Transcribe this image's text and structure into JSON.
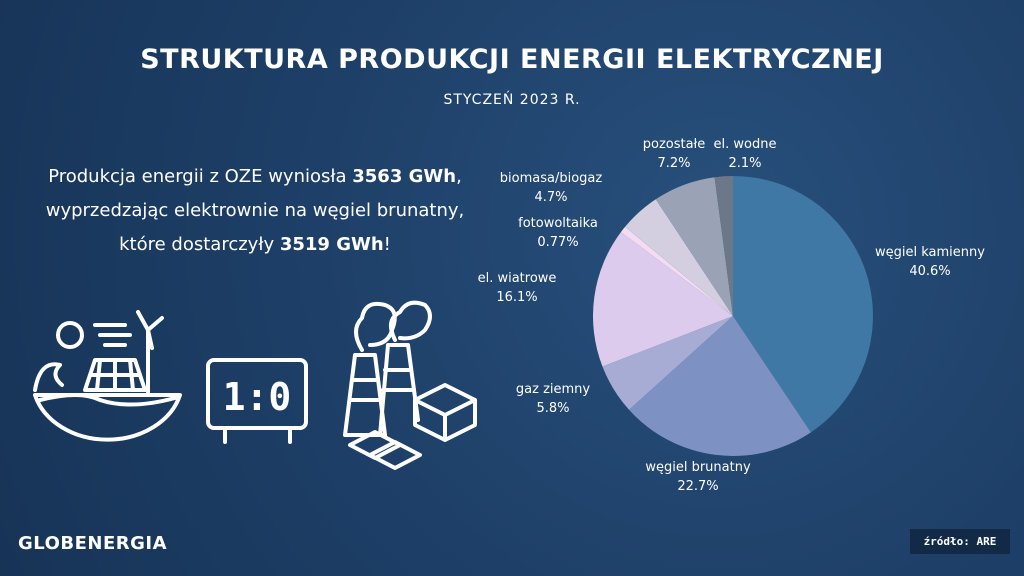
{
  "title": "STRUKTURA PRODUKCJI ENERGII ELEKTRYCZNEJ",
  "subtitle": "STYCZEŃ 2023 R.",
  "text": [
    [
      "Produkcja energii z OZE wyniosła ",
      "3563 GWh",
      ","
    ],
    [
      "wyprzedzając elektrownie na węgiel brunatny,"
    ],
    [
      "które dostarczyły ",
      "3519 GWh",
      "!"
    ]
  ],
  "scoreboard": "1:0",
  "logo": "GLOBENERGIA",
  "source": "źródło: ARE",
  "chart_data": {
    "type": "pie",
    "categories": [
      "węgiel kamienny",
      "węgiel brunatny",
      "gaz ziemny",
      "el. wiatrowe",
      "fotowoltaika",
      "biomasa/biogaz",
      "pozostałe",
      "el. wodne"
    ],
    "values": [
      40.6,
      22.7,
      5.8,
      16.1,
      0.77,
      4.7,
      7.2,
      2.1
    ],
    "value_labels": [
      "40.6%",
      "22.7%",
      "5.8%",
      "16.1%",
      "0.77%",
      "4.7%",
      "7.2%",
      "2.1%"
    ],
    "colors": [
      "#3f78a5",
      "#7d92c2",
      "#a6acd3",
      "#dccbec",
      "#f3dcf2",
      "#d3cfe0",
      "#9aa2b6",
      "#6c7889"
    ]
  }
}
